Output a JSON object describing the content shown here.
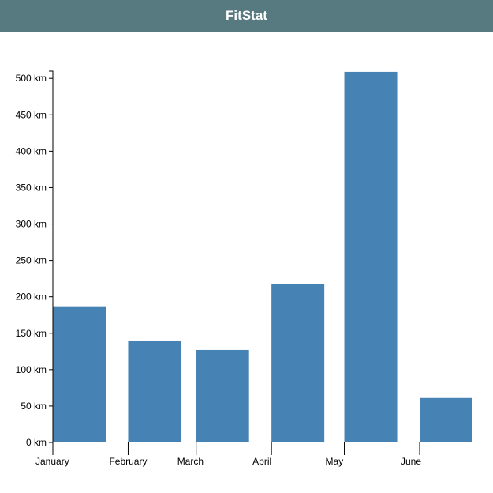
{
  "app": {
    "title": "FitStat"
  },
  "colors": {
    "header": "#567a7f",
    "bar": "#4682b4"
  },
  "chart_data": {
    "type": "bar",
    "categories": [
      "January",
      "February",
      "March",
      "April",
      "May",
      "June"
    ],
    "values": [
      187,
      140,
      127,
      218,
      509,
      61
    ],
    "x": [
      "2023-01-01",
      "2023-02-01",
      "2023-03-01",
      "2023-04-01",
      "2023-05-01",
      "2023-06-01"
    ],
    "ylim": [
      0,
      510
    ],
    "yticks": [
      0,
      50,
      100,
      150,
      200,
      250,
      300,
      350,
      400,
      450,
      500
    ],
    "ytick_labels": [
      "0 km",
      "50 km",
      "100 km",
      "150 km",
      "200 km",
      "250 km",
      "300 km",
      "350 km",
      "400 km",
      "450 km",
      "500 km"
    ],
    "grid": false,
    "legend": "none"
  }
}
